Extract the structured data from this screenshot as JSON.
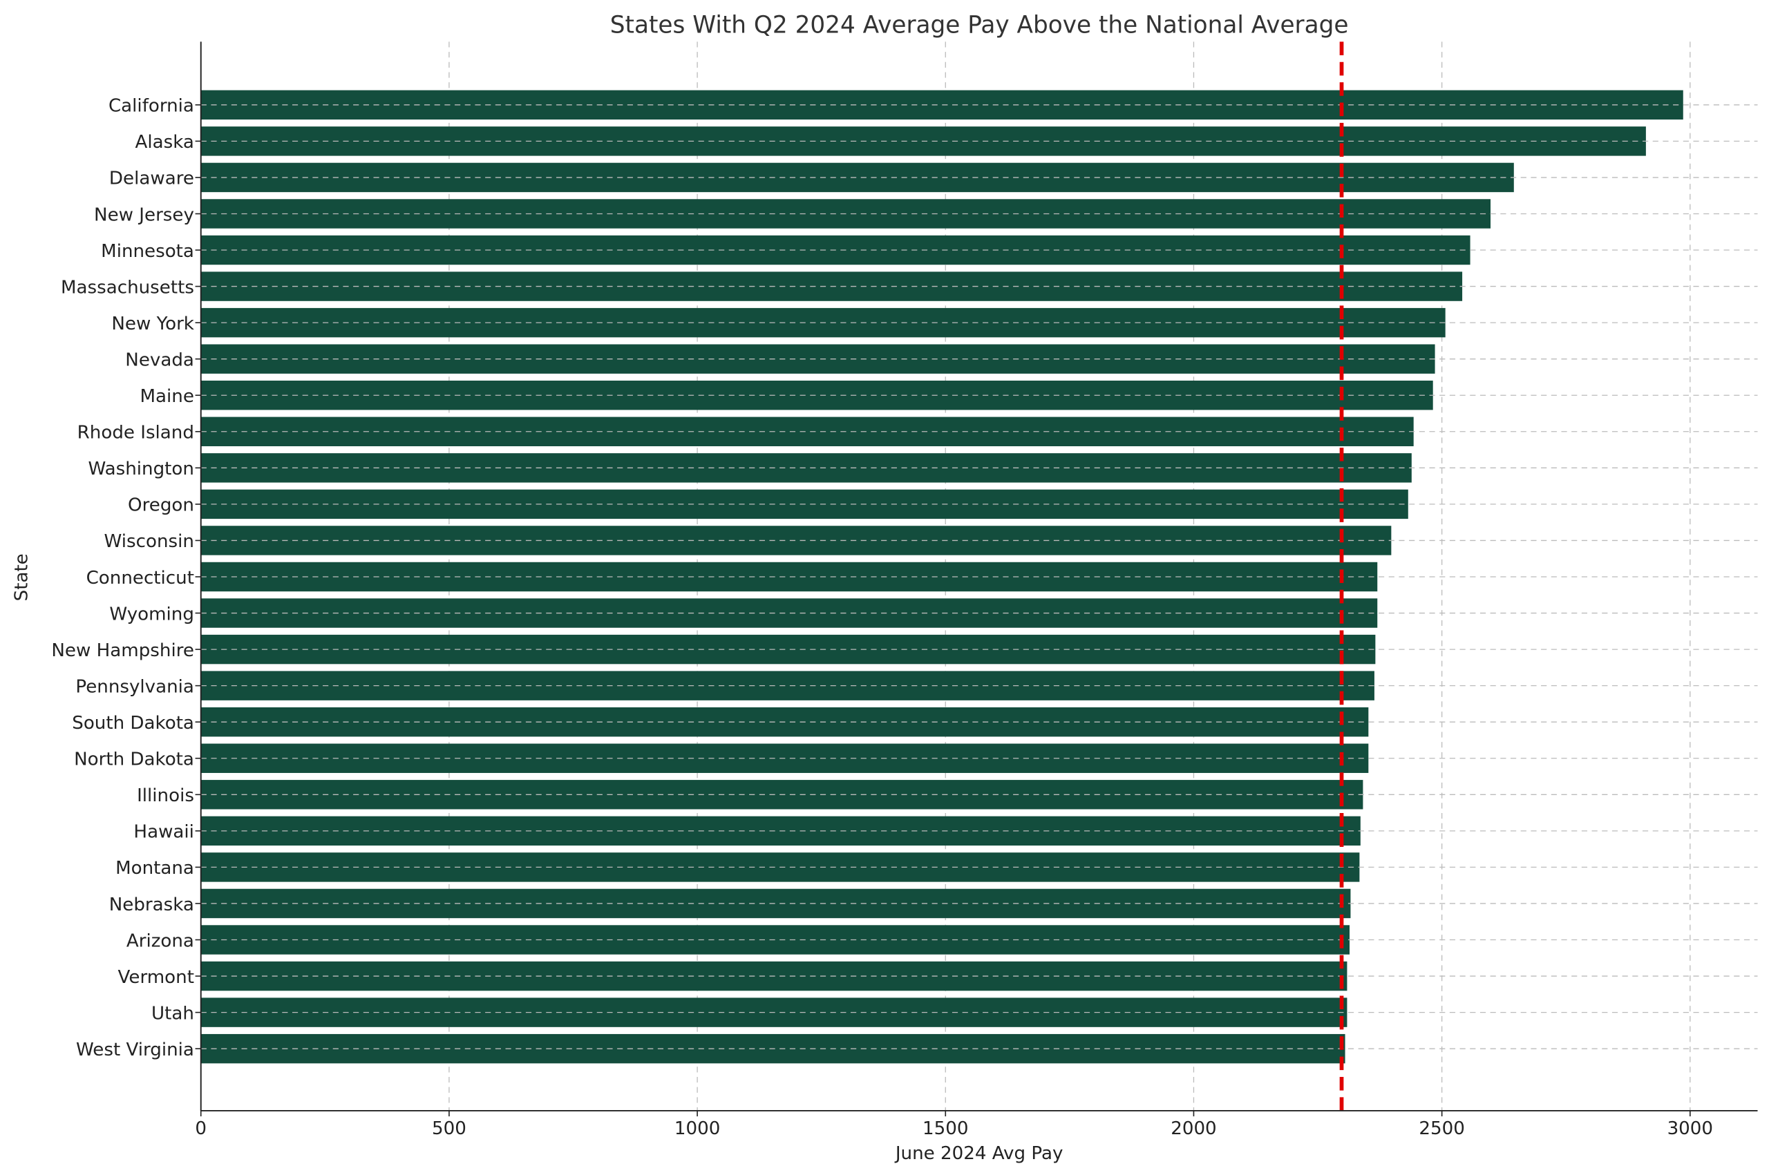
{
  "chart_data": {
    "type": "bar",
    "orientation": "horizontal",
    "title": "States With Q2 2024 Average Pay Above the National Average",
    "xlabel": "June 2024 Avg Pay",
    "ylabel": "State",
    "xlim": [
      0,
      3136
    ],
    "xticks": [
      0,
      500,
      1000,
      1500,
      2000,
      2500,
      3000
    ],
    "grid": true,
    "bar_color": "#134d3d",
    "reference_line": {
      "value": 2298,
      "color": "#e00000",
      "style": "dashed"
    },
    "categories": [
      "California",
      "Alaska",
      "Delaware",
      "New Jersey",
      "Minnesota",
      "Massachusetts",
      "New York",
      "Nevada",
      "Maine",
      "Rhode Island",
      "Washington",
      "Oregon",
      "Wisconsin",
      "Connecticut",
      "Wyoming",
      "New Hampshire",
      "Pennsylvania",
      "South Dakota",
      "North Dakota",
      "Illinois",
      "Hawaii",
      "Montana",
      "Nebraska",
      "Arizona",
      "Vermont",
      "Utah",
      "West Virginia"
    ],
    "values": [
      2986,
      2911,
      2645,
      2598,
      2557,
      2541,
      2507,
      2486,
      2482,
      2443,
      2439,
      2432,
      2398,
      2370,
      2370,
      2366,
      2364,
      2352,
      2352,
      2341,
      2336,
      2334,
      2316,
      2314,
      2309,
      2309,
      2305
    ]
  }
}
